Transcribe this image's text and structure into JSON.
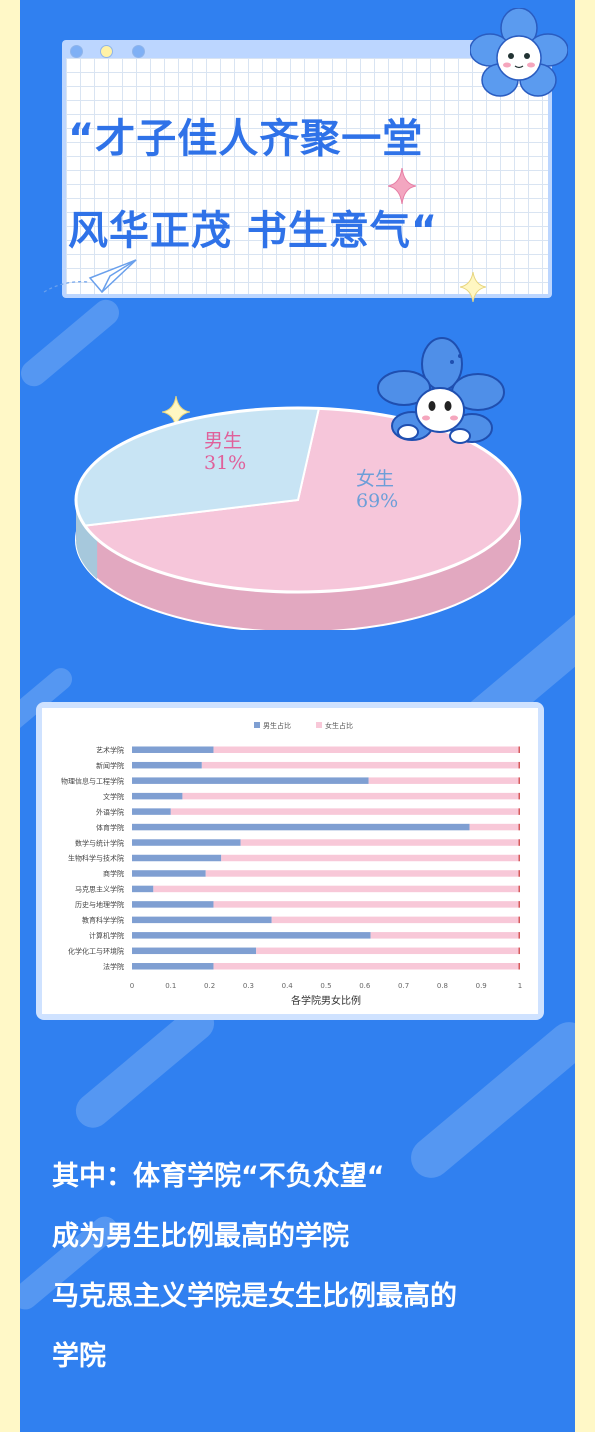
{
  "title": {
    "line1": "“才子佳人齐聚一堂",
    "line2": "风华正茂  书生意气“"
  },
  "pie_chart": {
    "type": "pie",
    "slices": [
      {
        "label": "男生",
        "percent_label": "31%",
        "value": 0.31,
        "color": "#c8e4f4"
      },
      {
        "label": "女生",
        "percent_label": "69%",
        "value": 0.69,
        "color": "#f6c6da"
      }
    ]
  },
  "chart_data": {
    "type": "bar",
    "orientation": "horizontal",
    "stacked": true,
    "title": "各学院男女比例",
    "categories": [
      "艺术学院",
      "新闻学院",
      "物理信息与工程学院",
      "文学院",
      "外语学院",
      "体育学院",
      "数学与统计学院",
      "生物科学与技术院",
      "商学院",
      "马克思主义学院",
      "历史与地理学院",
      "教育科学学院",
      "计算机学院",
      "化学化工与环境院",
      "法学院"
    ],
    "series": [
      {
        "name": "男生占比",
        "color": "#7f9fd2",
        "values": [
          0.21,
          0.18,
          0.61,
          0.13,
          0.1,
          0.87,
          0.28,
          0.23,
          0.19,
          0.055,
          0.21,
          0.36,
          0.615,
          0.32,
          0.21
        ]
      },
      {
        "name": "女生占比",
        "color": "#f8c8d8",
        "values": [
          0.79,
          0.82,
          0.39,
          0.87,
          0.9,
          0.13,
          0.72,
          0.77,
          0.81,
          0.945,
          0.79,
          0.64,
          0.385,
          0.68,
          0.79
        ]
      }
    ],
    "xlim": [
      0,
      1
    ],
    "xticks": [
      "0",
      "0.1",
      "0.2",
      "0.3",
      "0.4",
      "0.5",
      "0.6",
      "0.7",
      "0.8",
      "0.9",
      "1"
    ],
    "legend": "top-center"
  },
  "summary": {
    "line1": "其中：体育学院“不负众望“",
    "line2": "成为男生比例最高的学院",
    "line3": "马克思主义学院是女生比例最高的",
    "line4": "学院"
  },
  "colors": {
    "page_bg": "#fff8c7",
    "main_bg": "#3080f0",
    "title_text": "#2f72e8",
    "male": "#7f9fd2",
    "female": "#f8c8d8"
  }
}
